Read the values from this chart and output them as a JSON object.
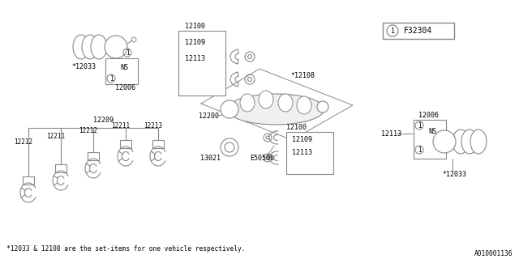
{
  "bg_color": "#ffffff",
  "line_color": "#888888",
  "text_color": "#000000",
  "footnote": "*12033 & 12108 are the set-items for one vehicle respectively.",
  "ref_code": "A010001136",
  "part_label": "F32304",
  "fig_width": 6.4,
  "fig_height": 3.2,
  "dpi": 100
}
